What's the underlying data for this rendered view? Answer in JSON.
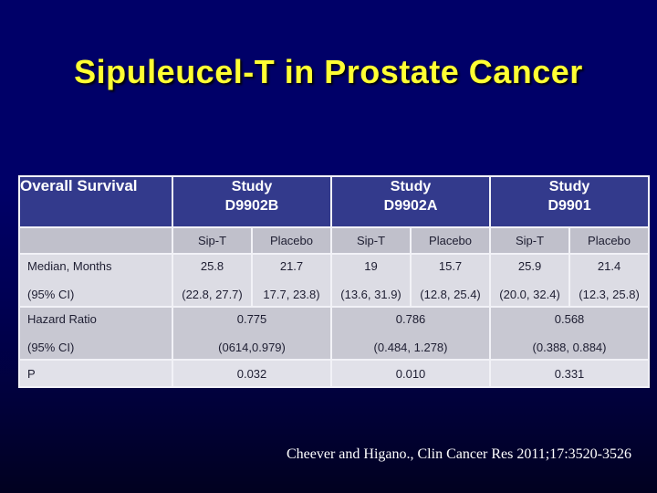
{
  "slide": {
    "title": "Sipuleucel-T in Prostate Cancer",
    "citation": "Cheever and Higano., Clin Cancer Res 2011;17:3520-3526"
  },
  "table": {
    "corner_label": "Overall Survival",
    "studies": [
      {
        "label": "Study",
        "id": "D9902B"
      },
      {
        "label": "Study",
        "id": "D9902A"
      },
      {
        "label": "Study",
        "id": "D9901"
      }
    ],
    "arm_headers": [
      "Sip-T",
      "Placebo",
      "Sip-T",
      "Placebo",
      "Sip-T",
      "Placebo"
    ],
    "rows": {
      "median": {
        "label": "Median, Months",
        "ci_label": "(95% CI)",
        "values": [
          "25.8",
          "21.7",
          "19",
          "15.7",
          "25.9",
          "21.4"
        ],
        "ci_values": [
          "(22.8, 27.7)",
          "17.7, 23.8)",
          "(13.6, 31.9)",
          "(12.8, 25.4)",
          "(20.0, 32.4)",
          "(12.3, 25.8)"
        ]
      },
      "hazard": {
        "label": "Hazard Ratio",
        "ci_label": "(95% CI)",
        "values": [
          "0.775",
          "0.786",
          "0.568"
        ],
        "ci_values": [
          "(0614,0.979)",
          "(0.484, 1.278)",
          "(0.388, 0.884)"
        ]
      },
      "p": {
        "label": "P",
        "values": [
          "0.032",
          "0.010",
          "0.331"
        ]
      }
    }
  },
  "colors": {
    "background_top": "#000068",
    "background_bottom": "#010120",
    "title_text": "#ffff33",
    "table_header_bg": "#333a8c",
    "arm_row_bg": "#c0c0cb",
    "light_row_bg": "#dcdce4",
    "mid_row_bg": "#c8c8d2",
    "p_row_bg": "#e1e1e9",
    "grid_border": "#f2f2f7",
    "body_text": "#1e1e32",
    "citation_text": "#ffffff"
  }
}
